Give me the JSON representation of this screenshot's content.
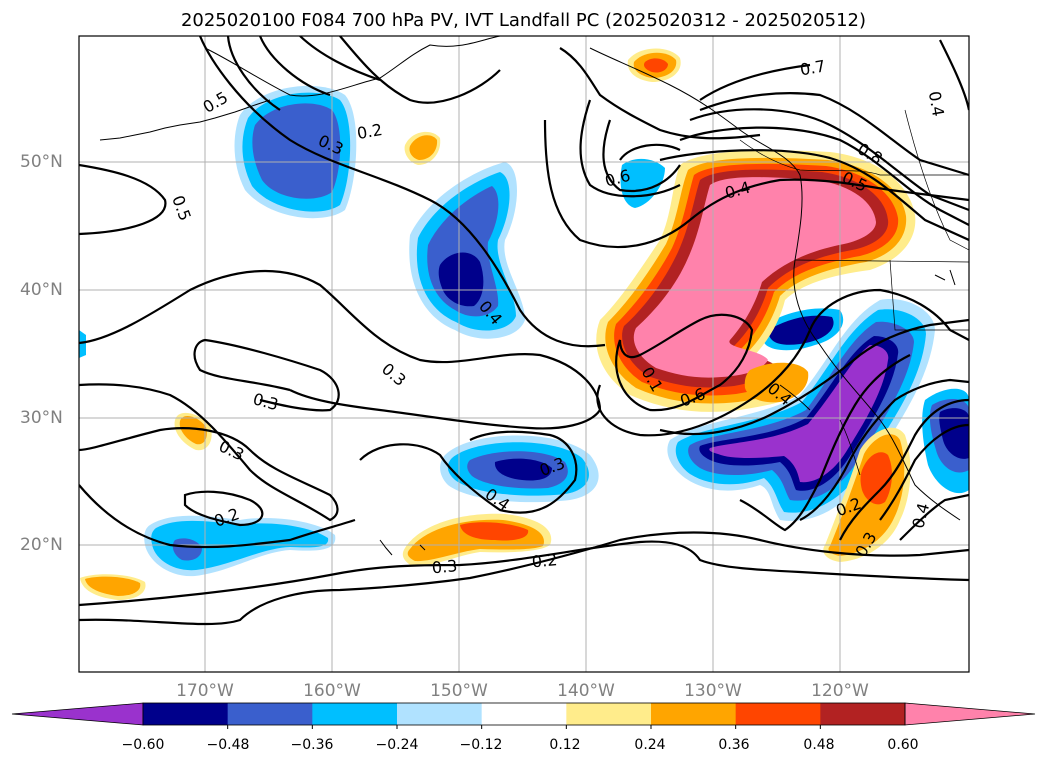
{
  "title": "2025020100 F084 700 hPa PV, IVT Landfall PC (2025020312 - 2025020512)",
  "lat_labels": [
    "50°N",
    "40°N",
    "30°N",
    "20°N"
  ],
  "lon_labels": [
    "170°W",
    "160°W",
    "150°W",
    "140°W",
    "130°W",
    "120°W"
  ],
  "colorbar": {
    "ticks": [
      "−0.60",
      "−0.48",
      "−0.36",
      "−0.24",
      "−0.12",
      "0.12",
      "0.24",
      "0.36",
      "0.48",
      "0.60"
    ],
    "colors": [
      "#9a32cd",
      "#00008b",
      "#3a5fcd",
      "#00bfff",
      "#b0e2ff",
      "#ffffff",
      "#ffec8b",
      "#ffa500",
      "#ff4500",
      "#b22222",
      "#ff82ab"
    ]
  },
  "contour_labels": [
    "0.5",
    "0.2",
    "0.3",
    "0.5",
    "0.7",
    "0.6",
    "0.4",
    "0.8",
    "0.5",
    "0.4",
    "0.4",
    "0.3",
    "0.3",
    "0.3",
    "0.2",
    "0.4",
    "0.3",
    "0.2",
    "0.6",
    "0.4",
    "0.2",
    "0.4",
    "0.3",
    "0.3",
    "0.1"
  ],
  "colors": {
    "frame": "#000000",
    "grid": "#b0b0b0",
    "contour": "#000000",
    "axis_text": "#808080"
  }
}
